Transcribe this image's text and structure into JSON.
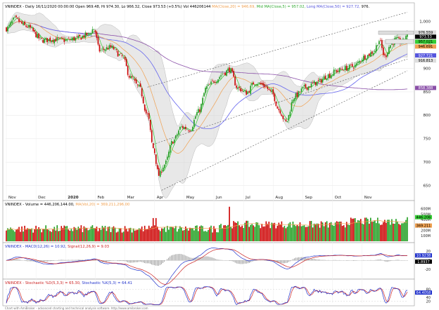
{
  "panels": {
    "price": {
      "header_prefix": "VNINDEX - Daily 16/11/2020 00:00:00 Open 969.48, Hi 974.30, Lo 966.32, Close 973.53 (+0.5%) Vol 446206144",
      "ma20_label": "MA(Close,20) = 946.69,",
      "ma5_label": "Mid MA(Close,5) = 957.02,",
      "ma50_label": "Long MA(Close,50) = 927.72,",
      "tail": "976."
    },
    "volume": {
      "header_prefix": "VNINDEX - Volume = 446,206,144.00,",
      "ma_label": "MA(Vol,20) = 369,211,296.00"
    },
    "macd": {
      "header_prefix": "VNINDEX - MACD(12,26) = 10.92,",
      "signal_label": "Signal(12,26,9) = 9.03"
    },
    "stoch": {
      "header_prefix": "VNINDEX - Stochastic %D(5,3,3) = 65.30,",
      "k_label": "Stochastic %K(5,3) = 64.41"
    },
    "footer": "Chart with AmiBroker - advanced charting and technical analysis software. http://www.amibroker.com"
  },
  "colors": {
    "up": "#1e9e1e",
    "down": "#cc0000",
    "ma20": "#f0a050",
    "ma5": "#33cc33",
    "ma50": "#6666ee",
    "ma200": "#8a4fa8",
    "band": "#cccccc",
    "channel": "#555555",
    "macd": "#2233cc",
    "signal": "#cc2222",
    "stoch_d": "#cc2222",
    "stoch_k": "#2233cc"
  },
  "chart_data": [
    {
      "type": "candlestick",
      "panel": "price",
      "x_labels": [
        "Nov",
        "Dec",
        "2020",
        "Feb",
        "Mar",
        "Apr",
        "May",
        "Jun",
        "Jul",
        "Aug",
        "Sep",
        "Oct",
        "Nov"
      ],
      "y_ticks": [
        650,
        700,
        750,
        800,
        850,
        900,
        950,
        1000
      ],
      "ylim": [
        630,
        1025
      ],
      "anchors": [
        {
          "x": 0,
          "v": 985
        },
        {
          "x": 6,
          "v": 1005
        },
        {
          "x": 14,
          "v": 990
        },
        {
          "x": 26,
          "v": 960
        },
        {
          "x": 34,
          "v": 962
        },
        {
          "x": 42,
          "v": 960
        },
        {
          "x": 50,
          "v": 964
        },
        {
          "x": 58,
          "v": 972
        },
        {
          "x": 62,
          "v": 985
        },
        {
          "x": 66,
          "v": 938
        },
        {
          "x": 74,
          "v": 945
        },
        {
          "x": 82,
          "v": 925
        },
        {
          "x": 88,
          "v": 880
        },
        {
          "x": 94,
          "v": 860
        },
        {
          "x": 100,
          "v": 800
        },
        {
          "x": 104,
          "v": 730
        },
        {
          "x": 108,
          "v": 672
        },
        {
          "x": 112,
          "v": 695
        },
        {
          "x": 118,
          "v": 745
        },
        {
          "x": 124,
          "v": 775
        },
        {
          "x": 130,
          "v": 770
        },
        {
          "x": 136,
          "v": 808
        },
        {
          "x": 142,
          "v": 860
        },
        {
          "x": 148,
          "v": 875
        },
        {
          "x": 154,
          "v": 890
        },
        {
          "x": 158,
          "v": 898
        },
        {
          "x": 164,
          "v": 858
        },
        {
          "x": 170,
          "v": 848
        },
        {
          "x": 176,
          "v": 870
        },
        {
          "x": 182,
          "v": 865
        },
        {
          "x": 188,
          "v": 848
        },
        {
          "x": 193,
          "v": 812
        },
        {
          "x": 198,
          "v": 785
        },
        {
          "x": 204,
          "v": 840
        },
        {
          "x": 212,
          "v": 860
        },
        {
          "x": 220,
          "v": 870
        },
        {
          "x": 228,
          "v": 885
        },
        {
          "x": 234,
          "v": 895
        },
        {
          "x": 240,
          "v": 900
        },
        {
          "x": 246,
          "v": 905
        },
        {
          "x": 254,
          "v": 925
        },
        {
          "x": 260,
          "v": 935
        },
        {
          "x": 264,
          "v": 960
        },
        {
          "x": 268,
          "v": 925
        },
        {
          "x": 272,
          "v": 950
        },
        {
          "x": 276,
          "v": 962
        },
        {
          "x": 280,
          "v": 955
        },
        {
          "x": 284,
          "v": 974
        }
      ],
      "current_close": 973.53,
      "price_tags": [
        {
          "label": "976.559",
          "value": 976.559,
          "bg": "#dddddd"
        },
        {
          "label": "973.53",
          "value": 973.53,
          "bg": "#000000"
        },
        {
          "label": "957.021",
          "value": 957.021,
          "bg": "#33cc33"
        },
        {
          "label": "946.691",
          "value": 946.691,
          "bg": "#f0a050"
        },
        {
          "label": "927.721",
          "value": 927.721,
          "bg": "#5555dd"
        },
        {
          "label": "916.813",
          "value": 916.813,
          "bg": "#dddddd"
        },
        {
          "label": "858.388",
          "value": 858.388,
          "bg": "#8a4fa8"
        }
      ]
    },
    {
      "type": "bar",
      "panel": "volume",
      "y_ticks_labels": [
        "600M",
        "500M",
        "400M",
        "300M",
        "200M",
        "100M"
      ],
      "y_ticks": [
        600,
        500,
        400,
        300,
        200,
        100
      ],
      "ylim": [
        0,
        650
      ],
      "current_value": 446.206,
      "current_ma": 369.211,
      "tags": [
        {
          "label": "446.206",
          "value": 446.206,
          "bg": "#33cc33"
        },
        {
          "label": "369.211",
          "value": 369.211,
          "bg": "#f0a050"
        }
      ]
    },
    {
      "type": "line",
      "panel": "macd",
      "y_ticks": [
        20,
        0,
        -20
      ],
      "ylim": [
        -38,
        25
      ],
      "tags": [
        {
          "label": "10.9238",
          "value": 10.92,
          "bg": "#2233cc"
        },
        {
          "label": "1.8937",
          "value": 1.89,
          "bg": "#000000"
        }
      ]
    },
    {
      "type": "line",
      "panel": "stochastic",
      "y_ticks": [
        80,
        60,
        40,
        20
      ],
      "ylim": [
        5,
        100
      ],
      "tags": [
        {
          "label": "64.4058",
          "value": 64.41,
          "bg": "#2233cc"
        }
      ]
    }
  ]
}
